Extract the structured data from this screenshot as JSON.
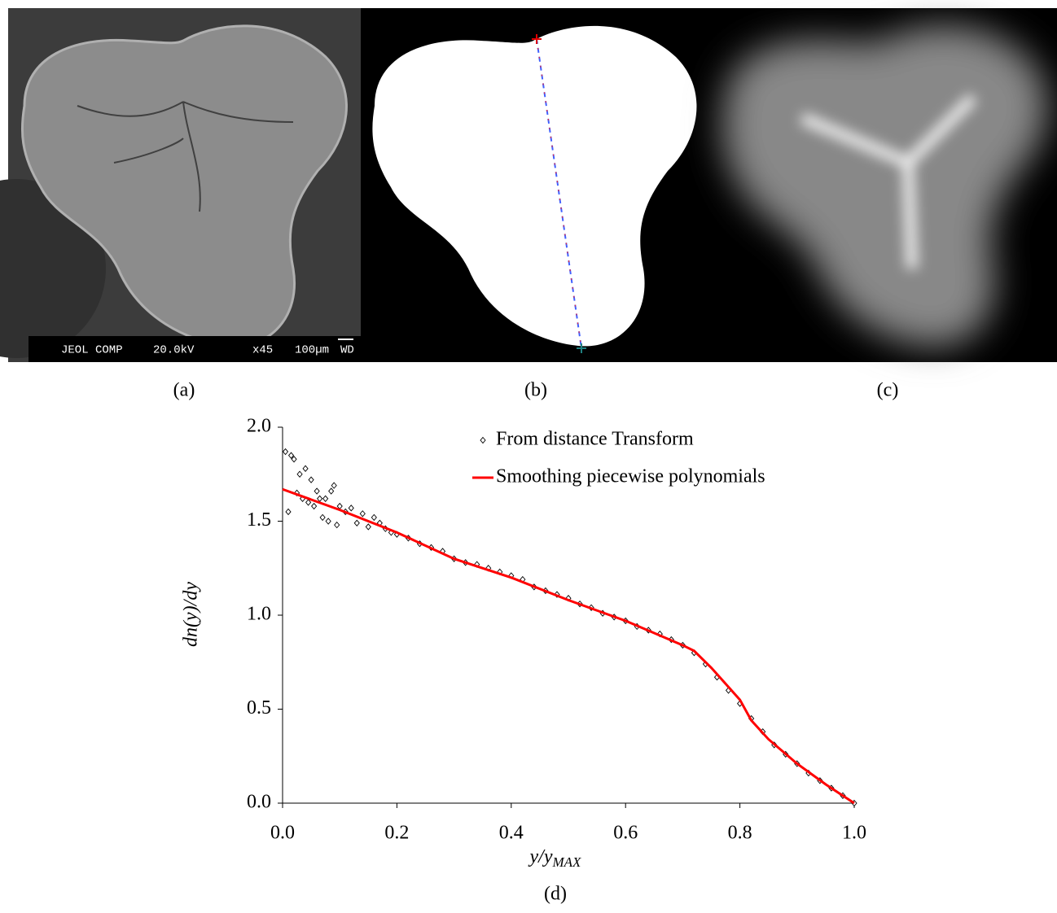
{
  "panels": [
    {
      "label": "(a)",
      "scale_bar": [
        "JEOL COMP",
        "20.0kV",
        "x45",
        "100µm",
        "WD"
      ]
    },
    {
      "label": "(b)"
    },
    {
      "label": "(c)"
    }
  ],
  "chart_data": {
    "type": "scatter",
    "panel_label": "(d)",
    "xlabel": "y/y",
    "xlabel_sub": "MAX",
    "ylabel": "dn(y)/dy",
    "xlim": [
      0,
      1
    ],
    "ylim": [
      0,
      2
    ],
    "xticks": [
      {
        "value": 0,
        "label": "0.0"
      },
      {
        "value": 0.2,
        "label": "0.2"
      },
      {
        "value": 0.4,
        "label": "0.4"
      },
      {
        "value": 0.6,
        "label": "0.6"
      },
      {
        "value": 0.8,
        "label": "0.8"
      },
      {
        "value": 1,
        "label": "1.0"
      }
    ],
    "yticks": [
      {
        "value": 0,
        "label": "0.0"
      },
      {
        "value": 0.5,
        "label": "0.5"
      },
      {
        "value": 1,
        "label": "1.0"
      },
      {
        "value": 1.5,
        "label": "1.5"
      },
      {
        "value": 2,
        "label": "2.0"
      }
    ],
    "series": [
      {
        "name": "From distance Transform",
        "style": "markers",
        "color": "#000000",
        "x": [
          0.005,
          0.01,
          0.015,
          0.02,
          0.025,
          0.03,
          0.035,
          0.04,
          0.045,
          0.05,
          0.055,
          0.06,
          0.065,
          0.07,
          0.075,
          0.08,
          0.085,
          0.09,
          0.095,
          0.1,
          0.11,
          0.12,
          0.13,
          0.14,
          0.15,
          0.16,
          0.17,
          0.18,
          0.19,
          0.2,
          0.22,
          0.24,
          0.26,
          0.28,
          0.3,
          0.32,
          0.34,
          0.36,
          0.38,
          0.4,
          0.42,
          0.44,
          0.46,
          0.48,
          0.5,
          0.52,
          0.54,
          0.56,
          0.58,
          0.6,
          0.62,
          0.64,
          0.66,
          0.68,
          0.7,
          0.72,
          0.74,
          0.76,
          0.78,
          0.8,
          0.82,
          0.84,
          0.86,
          0.88,
          0.9,
          0.92,
          0.94,
          0.96,
          0.98,
          1.0
        ],
        "values": [
          1.87,
          1.55,
          1.85,
          1.83,
          1.65,
          1.75,
          1.62,
          1.78,
          1.6,
          1.72,
          1.58,
          1.66,
          1.62,
          1.52,
          1.62,
          1.5,
          1.66,
          1.69,
          1.48,
          1.58,
          1.55,
          1.57,
          1.49,
          1.54,
          1.47,
          1.52,
          1.49,
          1.46,
          1.44,
          1.43,
          1.41,
          1.38,
          1.36,
          1.34,
          1.3,
          1.28,
          1.27,
          1.25,
          1.23,
          1.21,
          1.19,
          1.15,
          1.13,
          1.11,
          1.09,
          1.06,
          1.04,
          1.01,
          0.99,
          0.97,
          0.94,
          0.92,
          0.9,
          0.87,
          0.84,
          0.8,
          0.74,
          0.67,
          0.6,
          0.53,
          0.45,
          0.38,
          0.31,
          0.26,
          0.21,
          0.16,
          0.12,
          0.08,
          0.04,
          0.0
        ]
      },
      {
        "name": "Smoothing piecewise polynomials",
        "style": "line",
        "color": "#ff0000",
        "x": [
          0,
          0.1,
          0.2,
          0.3,
          0.4,
          0.5,
          0.6,
          0.7,
          0.72,
          0.75,
          0.8,
          0.82,
          0.85,
          0.9,
          0.95,
          1.0
        ],
        "values": [
          1.67,
          1.56,
          1.44,
          1.3,
          1.2,
          1.08,
          0.97,
          0.84,
          0.81,
          0.72,
          0.55,
          0.44,
          0.34,
          0.21,
          0.1,
          0.0
        ]
      }
    ]
  }
}
